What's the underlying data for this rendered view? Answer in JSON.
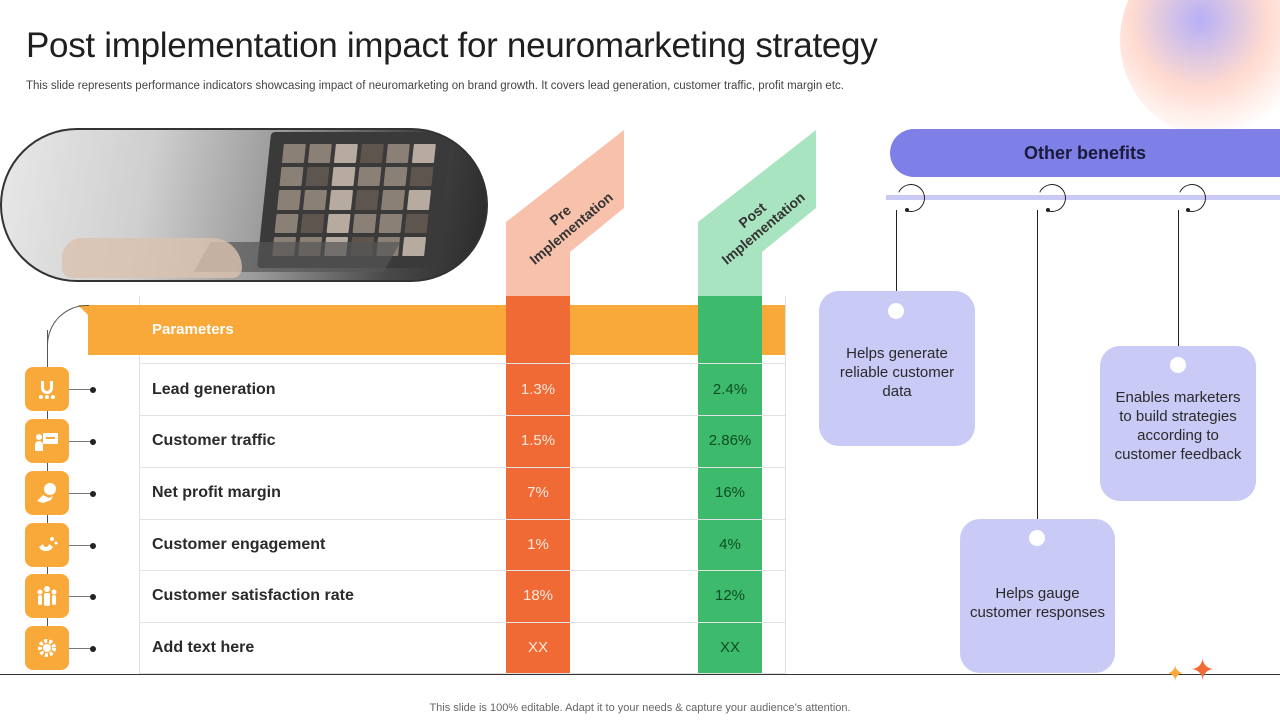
{
  "slide": {
    "title": "Post implementation impact for neuromarketing strategy",
    "subtitle": "This slide represents performance indicators showcasing impact of neuromarketing on brand growth. It covers lead generation, customer traffic, profit margin etc.",
    "footer": "This slide is 100% editable. Adapt it to your needs & capture your audience’s attention."
  },
  "table": {
    "header": "Parameters",
    "pre_label_line1": "Pre",
    "pre_label_line2": "Implementation",
    "post_label_line1": "Post",
    "post_label_line2": "Implementation",
    "rows": [
      {
        "label": "Lead generation",
        "pre": "1.3%",
        "post": "2.4%",
        "icon": "magnet-people-icon"
      },
      {
        "label": "Customer traffic",
        "pre": "1.5%",
        "post": "2.86%",
        "icon": "presentation-icon"
      },
      {
        "label": "Net profit margin",
        "pre": "7%",
        "post": "16%",
        "icon": "money-hand-icon"
      },
      {
        "label": "Customer engagement",
        "pre": "1%",
        "post": "4%",
        "icon": "magnet-icon"
      },
      {
        "label": "Customer satisfaction rate",
        "pre": "18%",
        "post": "12%",
        "icon": "group-people-icon"
      },
      {
        "label": "Add text here",
        "pre": "XX",
        "post": "XX",
        "icon": "gear-people-icon"
      }
    ]
  },
  "other_benefits": {
    "header": "Other benefits",
    "items": [
      "Helps generate reliable customer data",
      "Helps gauge customer responses",
      "Enables marketers to build strategies according to customer feedback"
    ]
  },
  "colors": {
    "orange_accent": "#f9a93a",
    "pre_column": "#ef6a35",
    "pre_flag": "#f8c1ab",
    "post_column": "#3dba6b",
    "post_flag": "#a9e4c0",
    "benefit_header": "#7f7fe8",
    "benefit_box": "#c9caf6"
  }
}
